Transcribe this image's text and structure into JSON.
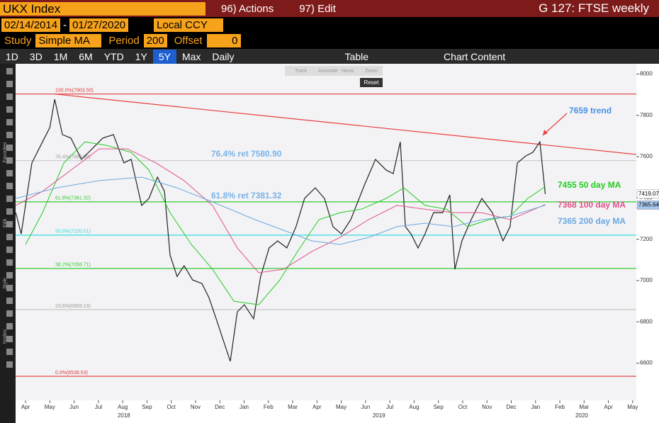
{
  "header": {
    "security": "UKX Index",
    "actions": "96) Actions",
    "edit": "97) Edit",
    "title": "G 127: FTSE weekly"
  },
  "dates": {
    "start": "02/14/2014",
    "end": "01/27/2020",
    "currency": "Local CCY"
  },
  "study": {
    "label": "Study",
    "value": "Simple MA",
    "period_label": "Period",
    "period": "200",
    "offset_label": "Offset",
    "offset": "0"
  },
  "ranges": [
    "1D",
    "3D",
    "1M",
    "6M",
    "YTD",
    "1Y",
    "5Y",
    "Max"
  ],
  "selected_range": "5Y",
  "frequency": "Daily",
  "table": "Table",
  "chart_content": "Chart Content",
  "side_labels": [
    "Favorites",
    "Edit",
    "Style",
    "Nodes"
  ],
  "mini_toolbar": [
    "Track",
    "Annotate",
    "News",
    "Zoom"
  ],
  "reset": "Reset",
  "chart_data": {
    "type": "line",
    "xlim": [
      -0.41,
      25.15
    ],
    "ylim": [
      6420,
      8050
    ],
    "yticks": [
      6600,
      6800,
      7000,
      7200,
      7400,
      7600,
      7800,
      8000
    ],
    "xticks": [
      {
        "value": 0,
        "label": "Apr"
      },
      {
        "value": 1,
        "label": "May"
      },
      {
        "value": 2,
        "label": "Jun"
      },
      {
        "value": 3,
        "label": "Jul"
      },
      {
        "value": 4,
        "label": "Aug"
      },
      {
        "value": 5,
        "label": "Sep"
      },
      {
        "value": 6,
        "label": "Oct"
      },
      {
        "value": 7,
        "label": "Nov"
      },
      {
        "value": 8,
        "label": "Dec"
      },
      {
        "value": 9,
        "label": "Jan"
      },
      {
        "value": 10,
        "label": "Feb"
      },
      {
        "value": 11,
        "label": "Mar"
      },
      {
        "value": 12,
        "label": "Apr"
      },
      {
        "value": 13,
        "label": "May"
      },
      {
        "value": 14,
        "label": "Jun"
      },
      {
        "value": 15,
        "label": "Jul"
      },
      {
        "value": 16,
        "label": "Aug"
      },
      {
        "value": 17,
        "label": "Sep"
      },
      {
        "value": 18,
        "label": "Oct"
      },
      {
        "value": 19,
        "label": "Nov"
      },
      {
        "value": 20,
        "label": "Dec"
      },
      {
        "value": 21,
        "label": "Jan"
      },
      {
        "value": 22,
        "label": "Feb"
      },
      {
        "value": 23,
        "label": "Mar"
      },
      {
        "value": 24,
        "label": "Apr"
      },
      {
        "value": 25,
        "label": "May"
      }
    ],
    "year_ticks": [
      {
        "value": 4.05,
        "label": "2018"
      },
      {
        "value": 14.55,
        "label": "2019"
      },
      {
        "value": 22.9,
        "label": "2020"
      }
    ],
    "series": [
      {
        "color": "#222222",
        "width": 1.2,
        "x": [
          -0.4,
          -0.18,
          0.26,
          0.7,
          1.0,
          1.2,
          1.52,
          1.87,
          2.3,
          2.74,
          3.18,
          3.62,
          4.05,
          4.35,
          4.78,
          5.08,
          5.43,
          5.72,
          5.95,
          6.24,
          6.53,
          6.88,
          7.26,
          7.55,
          7.85,
          8.14,
          8.43,
          8.72,
          9.01,
          9.39,
          9.68,
          10.03,
          10.38,
          10.76,
          11.14,
          11.49,
          11.93,
          12.31,
          12.66,
          13.01,
          13.39,
          13.68,
          13.97,
          14.41,
          14.85,
          15.14,
          15.43,
          15.64,
          15.87,
          16.16,
          16.45,
          16.8,
          17.18,
          17.47,
          17.68,
          17.97,
          18.35,
          18.79,
          19.22,
          19.66,
          19.95,
          20.25,
          20.6,
          20.89,
          21.18,
          21.4
        ],
        "values": [
          7329,
          7226,
          7570,
          7672,
          7741,
          7878,
          7707,
          7690,
          7587,
          7638,
          7690,
          7707,
          7570,
          7587,
          7364,
          7398,
          7501,
          7432,
          7123,
          7020,
          7072,
          7003,
          6986,
          6918,
          6815,
          6712,
          6609,
          6849,
          6883,
          6815,
          7020,
          7158,
          7192,
          7158,
          7261,
          7398,
          7449,
          7398,
          7261,
          7226,
          7295,
          7381,
          7467,
          7587,
          7535,
          7518,
          7672,
          7261,
          7226,
          7158,
          7226,
          7329,
          7329,
          7415,
          7055,
          7192,
          7295,
          7398,
          7329,
          7192,
          7261,
          7570,
          7604,
          7621,
          7672,
          7419
        ]
      },
      {
        "color": "#22cc22",
        "width": 1,
        "x": [
          0,
          0.7,
          1.58,
          2.45,
          3.33,
          4.35,
          5.08,
          5.95,
          6.83,
          7.7,
          8.58,
          9.6,
          10.47,
          11.2,
          12.08,
          12.95,
          13.83,
          14.85,
          15.58,
          16.45,
          17.33,
          18.2,
          19.08,
          19.95,
          20.68,
          21.4
        ],
        "values": [
          7175,
          7329,
          7570,
          7672,
          7655,
          7621,
          7535,
          7329,
          7175,
          7055,
          6900,
          6883,
          7003,
          7141,
          7295,
          7329,
          7346,
          7398,
          7449,
          7364,
          7346,
          7261,
          7295,
          7312,
          7398,
          7455
        ]
      },
      {
        "color": "#e0508a",
        "width": 1,
        "x": [
          -0.4,
          0.7,
          1.87,
          3.03,
          4.2,
          5.37,
          6.53,
          7.7,
          8.72,
          9.6,
          10.62,
          11.79,
          12.95,
          14.12,
          15.29,
          16.45,
          17.62,
          18.79,
          19.95,
          21.4
        ],
        "values": [
          7364,
          7432,
          7535,
          7638,
          7638,
          7570,
          7484,
          7364,
          7158,
          7038,
          7055,
          7141,
          7209,
          7295,
          7364,
          7346,
          7329,
          7329,
          7295,
          7368
        ]
      },
      {
        "color": "#6aa8e0",
        "width": 1,
        "x": [
          -0.4,
          1.28,
          3.03,
          4.78,
          6.24,
          7.7,
          9.45,
          10.62,
          11.79,
          12.95,
          14.12,
          15.29,
          16.45,
          17.62,
          18.79,
          19.95,
          21.4
        ],
        "values": [
          7398,
          7449,
          7484,
          7501,
          7449,
          7381,
          7295,
          7244,
          7192,
          7175,
          7209,
          7261,
          7278,
          7261,
          7295,
          7312,
          7365
        ]
      }
    ],
    "fib_levels": [
      {
        "value": 7903.5,
        "label": "100.0%(7903.50)",
        "color": "#e03a3a"
      },
      {
        "value": 7580.9,
        "label": "76.4%(7580.90)",
        "color": "#c8c8c8"
      },
      {
        "value": 7381.32,
        "label": "61.8%(7381.32)",
        "color": "#33cc33"
      },
      {
        "value": 7220.01,
        "label": "50.0%(7220.01)",
        "color": "#33dddd"
      },
      {
        "value": 7058.71,
        "label": "38.2%(7058.71)",
        "color": "#33cc33"
      },
      {
        "value": 6859.13,
        "label": "23.6%(6859.13)",
        "color": "#c8c8c8"
      },
      {
        "value": 6536.53,
        "label": "0.0%(6536.53)",
        "color": "#e03a3a"
      }
    ],
    "trend_line": {
      "color": "#e84040",
      "x": [
        1.2,
        25.15
      ],
      "values": [
        7903.5,
        7611
      ]
    },
    "annotations": [
      {
        "text": "76.4% ret 7580.90",
        "color": "#7ab4e8"
      },
      {
        "text": "61.8% ret 7381.32",
        "color": "#7ab4e8"
      },
      {
        "text": "7659 trend",
        "color": "#4a90e0"
      },
      {
        "text": "7455 50 day MA",
        "color": "#22cc22"
      },
      {
        "text": "7368 100 day MA",
        "color": "#e0508a"
      },
      {
        "text": "7365 200 day MA",
        "color": "#6aa8e0"
      }
    ],
    "price_tags": [
      {
        "value": 7419.07,
        "color": "#ffffff"
      },
      {
        "value": 7365.64,
        "color": "#a8c8f0"
      }
    ]
  }
}
